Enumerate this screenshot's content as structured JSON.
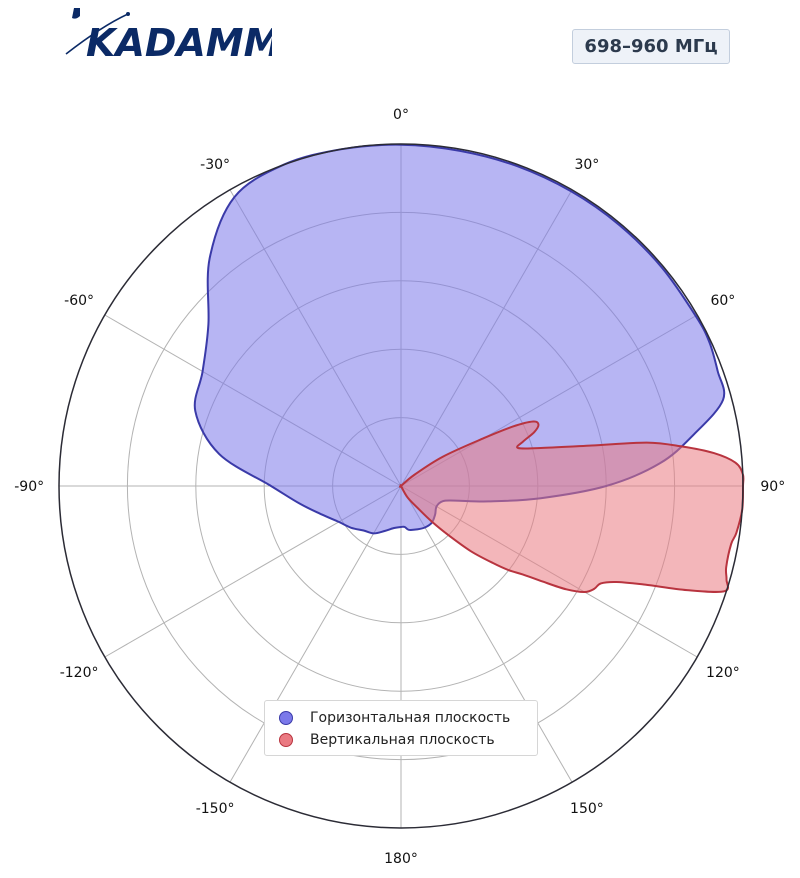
{
  "header": {
    "logo_icon": "kadamm-logo",
    "logo_text": "KADAMM",
    "logo_color": "#0b2a66",
    "band_label": "698–960 МГц"
  },
  "chart_data": {
    "type": "polar",
    "angle_ticks": [
      "0°",
      "30°",
      "60°",
      "90°",
      "120°",
      "150°",
      "180°",
      "-150°",
      "-120°",
      "-90°",
      "-60°",
      "-30°"
    ],
    "angle_tick_values": [
      0,
      30,
      60,
      90,
      120,
      150,
      180,
      -150,
      -120,
      -90,
      -60,
      -30
    ],
    "radial_range": [
      0,
      1
    ],
    "radial_gridlines": [
      0.2,
      0.4,
      0.6,
      0.8,
      1.0
    ],
    "angle_gridline_step": 30,
    "zero_direction": "top",
    "direction": "clockwise",
    "grid": true,
    "legend_position": "bottom-center",
    "series": [
      {
        "name": "Горизонтальная плоскость",
        "fill": "#7b79ea",
        "stroke": "#3a3aa8",
        "points": [
          [
            0,
            0.998
          ],
          [
            10,
            0.995
          ],
          [
            20,
            0.995
          ],
          [
            30,
            0.995
          ],
          [
            40,
            0.995
          ],
          [
            50,
            0.995
          ],
          [
            60,
            0.995
          ],
          [
            65,
            0.995
          ],
          [
            70,
            0.985
          ],
          [
            75,
            0.975
          ],
          [
            80,
            0.87
          ],
          [
            85,
            0.76
          ],
          [
            90,
            0.6
          ],
          [
            95,
            0.41
          ],
          [
            100,
            0.26
          ],
          [
            105,
            0.165
          ],
          [
            110,
            0.13
          ],
          [
            120,
            0.12
          ],
          [
            130,
            0.13
          ],
          [
            140,
            0.14
          ],
          [
            150,
            0.14
          ],
          [
            160,
            0.135
          ],
          [
            170,
            0.13
          ],
          [
            175,
            0.12
          ],
          [
            180,
            0.12
          ],
          [
            190,
            0.125
          ],
          [
            200,
            0.14
          ],
          [
            210,
            0.16
          ],
          [
            220,
            0.17
          ],
          [
            230,
            0.19
          ],
          [
            240,
            0.21
          ],
          [
            250,
            0.245
          ],
          [
            260,
            0.3
          ],
          [
            270,
            0.38
          ],
          [
            280,
            0.54
          ],
          [
            290,
            0.64
          ],
          [
            300,
            0.67
          ],
          [
            310,
            0.735
          ],
          [
            320,
            0.87
          ],
          [
            330,
            0.975
          ],
          [
            340,
            1.0
          ],
          [
            350,
            1.0
          ]
        ]
      },
      {
        "name": "Вертикальная плоскость",
        "fill": "#ea7a82",
        "stroke": "#b8343f",
        "points": [
          [
            0,
            0.0
          ],
          [
            10,
            0.0
          ],
          [
            20,
            0.0
          ],
          [
            30,
            0.0
          ],
          [
            40,
            0.0
          ],
          [
            45,
            0.0
          ],
          [
            50,
            0.05
          ],
          [
            55,
            0.15
          ],
          [
            60,
            0.28
          ],
          [
            62,
            0.37
          ],
          [
            64,
            0.43
          ],
          [
            66,
            0.44
          ],
          [
            68,
            0.42
          ],
          [
            70,
            0.38
          ],
          [
            72,
            0.36
          ],
          [
            75,
            0.43
          ],
          [
            78,
            0.57
          ],
          [
            80,
            0.73
          ],
          [
            82,
            0.83
          ],
          [
            84,
            0.92
          ],
          [
            86,
            0.98
          ],
          [
            88,
            1.0
          ],
          [
            90,
            1.0
          ],
          [
            94,
            1.0
          ],
          [
            98,
            0.99
          ],
          [
            100,
            0.98
          ],
          [
            104,
            0.98
          ],
          [
            106,
            0.99
          ],
          [
            108,
            0.995
          ],
          [
            110,
            0.89
          ],
          [
            112,
            0.77
          ],
          [
            114,
            0.69
          ],
          [
            116,
            0.65
          ],
          [
            118,
            0.64
          ],
          [
            120,
            0.62
          ],
          [
            122,
            0.57
          ],
          [
            124,
            0.5
          ],
          [
            126,
            0.44
          ],
          [
            128,
            0.4
          ],
          [
            130,
            0.35
          ],
          [
            133,
            0.28
          ],
          [
            136,
            0.2
          ],
          [
            139,
            0.14
          ],
          [
            142,
            0.09
          ],
          [
            150,
            0.04
          ],
          [
            160,
            0.0
          ],
          [
            180,
            0.0
          ],
          [
            210,
            0.0
          ],
          [
            240,
            0.0
          ],
          [
            270,
            0.0
          ],
          [
            300,
            0.0
          ],
          [
            330,
            0.0
          ]
        ]
      }
    ]
  }
}
